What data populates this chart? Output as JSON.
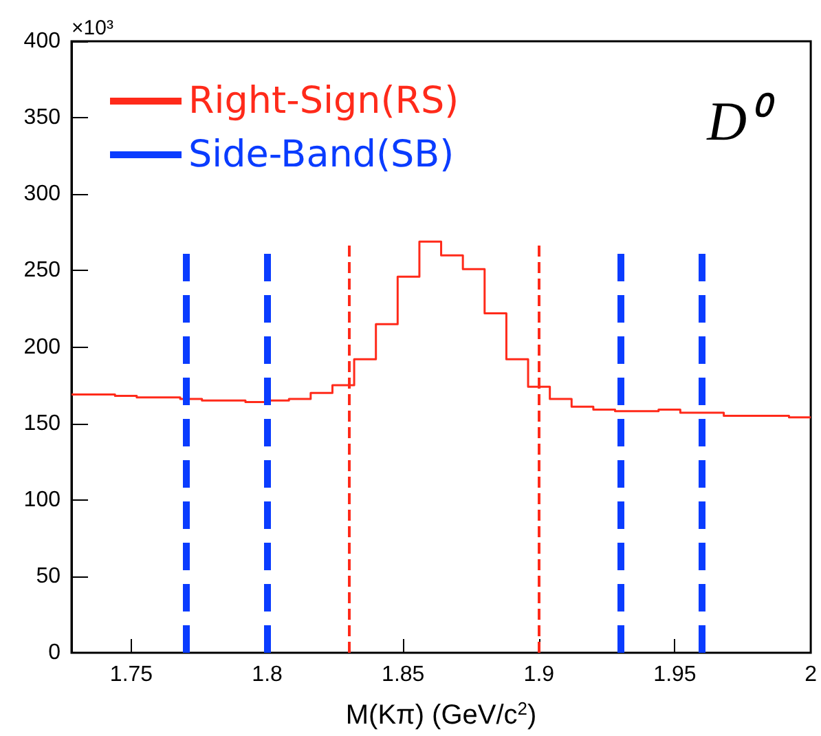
{
  "chart_data": {
    "type": "histogram",
    "ylabel": "×10³",
    "xlabel": "M(Kπ) (GeV/c$^{2}$)",
    "bins": [
      1.728,
      1.736,
      1.744,
      1.752,
      1.76,
      1.768,
      1.776,
      1.784,
      1.792,
      1.8,
      1.808,
      1.816,
      1.824,
      1.832,
      1.84,
      1.848,
      1.856,
      1.864,
      1.872,
      1.88,
      1.888,
      1.896,
      1.904,
      1.912,
      1.92,
      1.928,
      1.936,
      1.944,
      1.952,
      1.96,
      1.968,
      1.976,
      1.984,
      1.992,
      2.0
    ],
    "series": [
      {
        "name": "Right-Sign(RS)",
        "color": "#ff2a1a",
        "values": [
          169,
          169,
          168,
          167,
          167,
          166,
          165,
          165,
          164,
          165,
          166,
          170,
          175,
          192,
          215,
          246,
          269,
          260,
          251,
          222,
          192,
          174,
          166,
          161,
          159,
          158,
          158,
          159,
          157,
          157,
          155,
          155,
          155,
          154
        ]
      }
    ],
    "xlim": [
      1.728,
      2.0
    ],
    "xticks": [
      1.75,
      1.8,
      1.85,
      1.9,
      1.95,
      2
    ],
    "ylim": [
      0,
      400
    ],
    "yticks": [
      0,
      50,
      100,
      150,
      200,
      250,
      300,
      350,
      400
    ],
    "grid": false,
    "legend": "top left",
    "ref_lines": [
      {
        "axis": "x",
        "value": 1.83,
        "color": "#ff2a1a",
        "line_style": "dashed"
      },
      {
        "axis": "x",
        "value": 1.9,
        "color": "#ff2a1a",
        "line_style": "dashed"
      },
      {
        "axis": "x",
        "value": 1.77,
        "color": "#0a3cff",
        "line_style": "dashed",
        "label": "Side-Band(SB)"
      },
      {
        "axis": "x",
        "value": 1.8,
        "color": "#0a3cff",
        "line_style": "dashed"
      },
      {
        "axis": "x",
        "value": 1.93,
        "color": "#0a3cff",
        "line_style": "dashed"
      },
      {
        "axis": "x",
        "value": 1.96,
        "color": "#0a3cff",
        "line_style": "dashed"
      }
    ],
    "annotations": [
      "D⁰"
    ]
  }
}
